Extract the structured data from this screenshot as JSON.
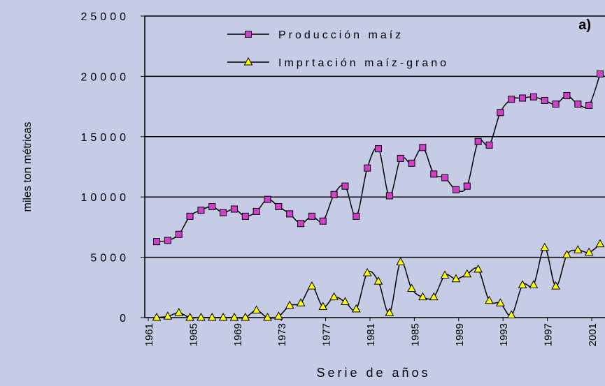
{
  "chart_data": {
    "type": "line",
    "title": "a)",
    "y_label": "miles ton métricas",
    "x_label": "Serie de años",
    "categories": [
      "1961",
      null,
      null,
      null,
      "1965",
      null,
      null,
      null,
      "1969",
      null,
      null,
      null,
      "1973",
      null,
      null,
      null,
      "1977",
      null,
      null,
      null,
      "1981",
      null,
      null,
      null,
      "1985",
      null,
      null,
      null,
      "1989",
      null,
      null,
      null,
      "1993",
      null,
      null,
      null,
      "1997",
      null,
      null,
      null,
      "2001"
    ],
    "series": [
      {
        "name": "Producción maíz",
        "color": "#d040c8",
        "marker": "square",
        "values": [
          6300,
          6400,
          6900,
          8400,
          8900,
          9200,
          8700,
          9000,
          8400,
          8800,
          9800,
          9200,
          8600,
          7800,
          8400,
          8000,
          10200,
          10900,
          8400,
          12400,
          14000,
          10100,
          13200,
          12800,
          14100,
          11900,
          11600,
          10600,
          10900,
          14600,
          14300,
          17000,
          18100,
          18200,
          18300,
          18000,
          17700,
          18400,
          17700,
          17600,
          20200
        ]
      },
      {
        "name": "Imprtación maíz-grano",
        "color": "#ffff00",
        "marker": "triangle",
        "values": [
          0,
          100,
          400,
          0,
          0,
          0,
          0,
          0,
          0,
          600,
          0,
          100,
          1000,
          1200,
          2600,
          900,
          1700,
          1300,
          700,
          3700,
          3000,
          400,
          4600,
          2400,
          1700,
          1700,
          3500,
          3200,
          3600,
          4000,
          1400,
          1200,
          200,
          2700,
          2700,
          5800,
          2600,
          5200,
          5600,
          5400,
          6100
        ]
      }
    ],
    "ylim": [
      0,
      25000
    ],
    "yticks": [
      0,
      5000,
      10000,
      15000,
      20000,
      25000
    ],
    "grid": true
  }
}
